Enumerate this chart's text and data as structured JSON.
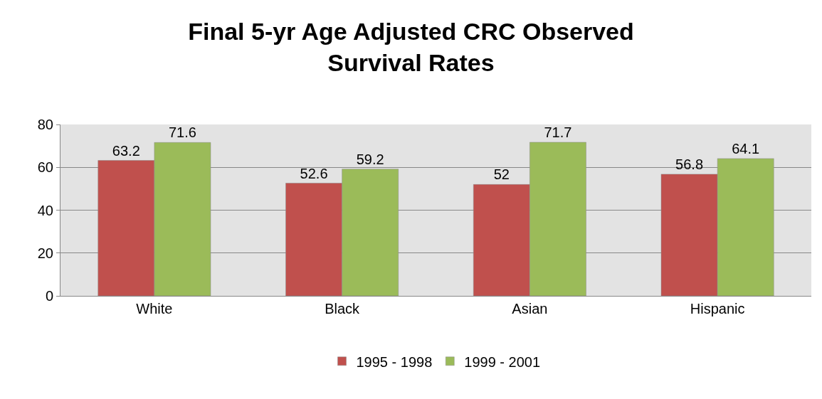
{
  "chart_data": {
    "type": "bar",
    "title": "Final 5-yr Age Adjusted CRC Observed\nSurvival Rates",
    "categories": [
      "White",
      "Black",
      "Asian",
      "Hispanic"
    ],
    "series": [
      {
        "name": "1995 - 1998",
        "color": "#c0504d",
        "values": [
          63.2,
          52.6,
          52,
          56.8
        ]
      },
      {
        "name": "1999 - 2001",
        "color": "#9bbb59",
        "values": [
          71.6,
          59.2,
          71.7,
          64.1
        ]
      }
    ],
    "ylim": [
      0,
      80
    ],
    "yticks": [
      0,
      20,
      40,
      60,
      80
    ],
    "grid": "y",
    "legend": "bottom",
    "data_labels": true
  }
}
